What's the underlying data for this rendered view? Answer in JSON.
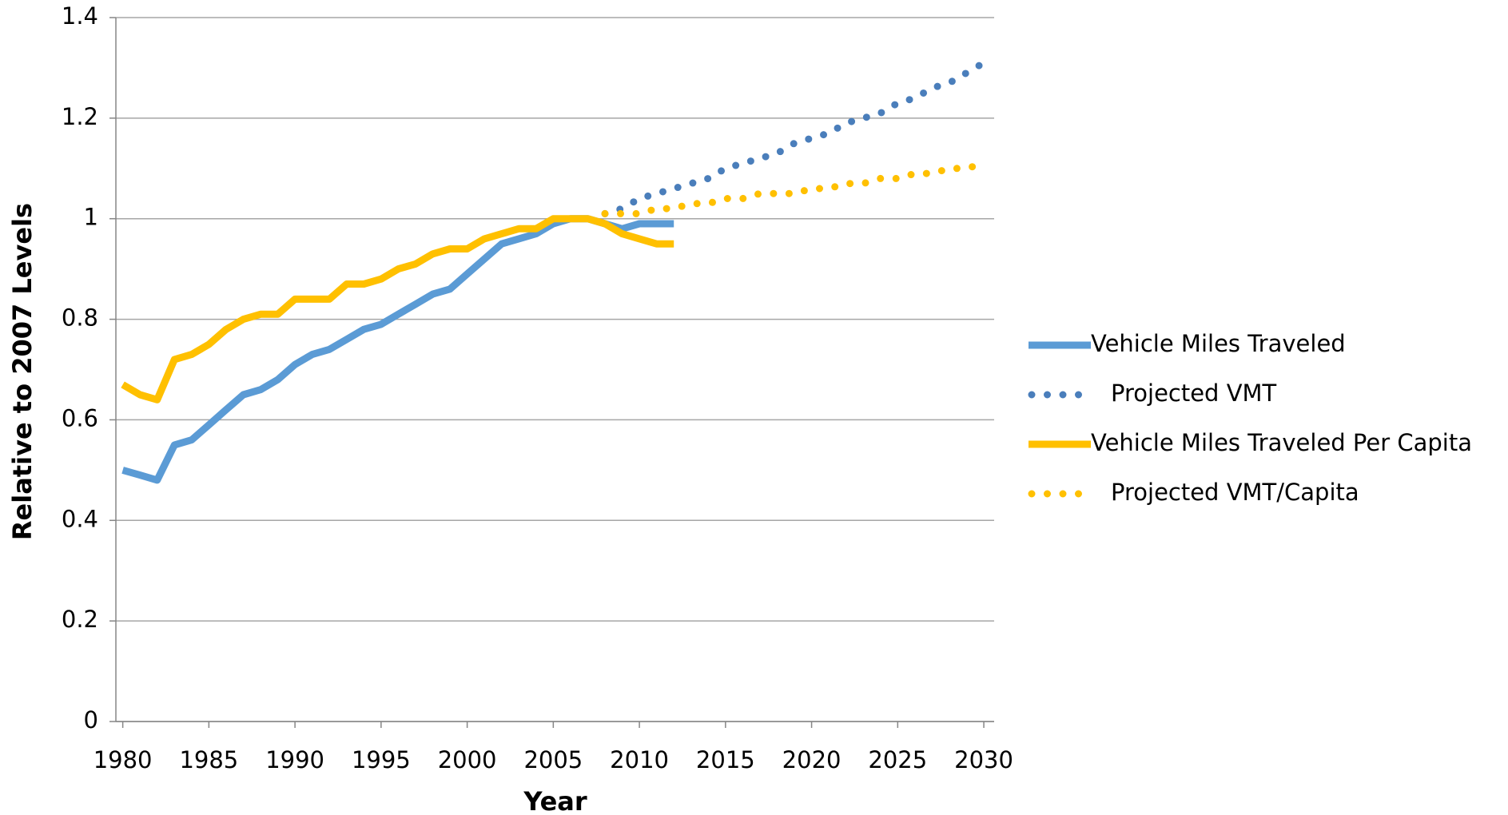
{
  "chart_data": {
    "type": "line",
    "x_label": "Year",
    "y_label": "Relative to 2007 Levels",
    "x": [
      1980,
      1981,
      1982,
      1983,
      1984,
      1985,
      1986,
      1987,
      1988,
      1989,
      1990,
      1991,
      1992,
      1993,
      1994,
      1995,
      1996,
      1997,
      1998,
      1999,
      2000,
      2001,
      2002,
      2003,
      2004,
      2005,
      2006,
      2007,
      2008,
      2009,
      2010,
      2011,
      2012,
      2013,
      2014,
      2015,
      2016,
      2017,
      2018,
      2019,
      2020,
      2021,
      2022,
      2023,
      2024,
      2025,
      2026,
      2027,
      2028,
      2029,
      2030
    ],
    "xlim": [
      1979.6,
      2030.6
    ],
    "xticks": [
      1980,
      1985,
      1990,
      1995,
      2000,
      2005,
      2010,
      2015,
      2020,
      2025,
      2030
    ],
    "ylim": [
      0,
      1.4
    ],
    "yticks": [
      0,
      0.2,
      0.4,
      0.6,
      0.8,
      1,
      1.2,
      1.4
    ],
    "grid": true,
    "legend": "right",
    "series": [
      {
        "name": "Vehicle Miles Traveled",
        "color": "#5b9bd5",
        "style": "solid",
        "values": [
          0.5,
          0.49,
          0.48,
          0.55,
          0.56,
          0.59,
          0.62,
          0.65,
          0.66,
          0.68,
          0.71,
          0.73,
          0.74,
          0.76,
          0.78,
          0.79,
          0.81,
          0.83,
          0.85,
          0.86,
          0.89,
          0.92,
          0.95,
          0.96,
          0.97,
          0.99,
          1.0,
          1.0,
          0.99,
          0.98,
          0.99,
          0.99,
          0.99,
          null,
          null,
          null,
          null,
          null,
          null,
          null,
          null,
          null,
          null,
          null,
          null,
          null,
          null,
          null,
          null,
          null,
          null
        ]
      },
      {
        "name": "Projected VMT",
        "color": "#4a7ebb",
        "style": "dotted",
        "values": [
          null,
          null,
          null,
          null,
          null,
          null,
          null,
          null,
          null,
          null,
          null,
          null,
          null,
          null,
          null,
          null,
          null,
          null,
          null,
          null,
          null,
          null,
          null,
          null,
          null,
          null,
          null,
          null,
          1.01,
          1.02,
          1.04,
          1.05,
          1.06,
          1.07,
          1.08,
          1.1,
          1.11,
          1.12,
          1.13,
          1.15,
          1.16,
          1.17,
          1.19,
          1.2,
          1.21,
          1.23,
          1.24,
          1.26,
          1.27,
          1.29,
          1.31
        ]
      },
      {
        "name": "Vehicle Miles Traveled Per Capita",
        "color": "#ffc000",
        "style": "solid",
        "values": [
          0.67,
          0.65,
          0.64,
          0.72,
          0.73,
          0.75,
          0.78,
          0.8,
          0.81,
          0.81,
          0.84,
          0.84,
          0.84,
          0.87,
          0.87,
          0.88,
          0.9,
          0.91,
          0.93,
          0.94,
          0.94,
          0.96,
          0.97,
          0.98,
          0.98,
          1.0,
          1.0,
          1.0,
          0.99,
          0.97,
          0.96,
          0.95,
          0.95,
          null,
          null,
          null,
          null,
          null,
          null,
          null,
          null,
          null,
          null,
          null,
          null,
          null,
          null,
          null,
          null,
          null,
          null
        ]
      },
      {
        "name": "Projected VMT/Capita",
        "color": "#ffc000",
        "style": "dotted",
        "values": [
          null,
          null,
          null,
          null,
          null,
          null,
          null,
          null,
          null,
          null,
          null,
          null,
          null,
          null,
          null,
          null,
          null,
          null,
          null,
          null,
          null,
          null,
          null,
          null,
          null,
          null,
          null,
          null,
          1.01,
          1.01,
          1.01,
          1.02,
          1.02,
          1.03,
          1.03,
          1.04,
          1.04,
          1.05,
          1.05,
          1.05,
          1.06,
          1.06,
          1.07,
          1.07,
          1.08,
          1.08,
          1.09,
          1.09,
          1.1,
          1.1,
          1.11
        ]
      }
    ]
  }
}
